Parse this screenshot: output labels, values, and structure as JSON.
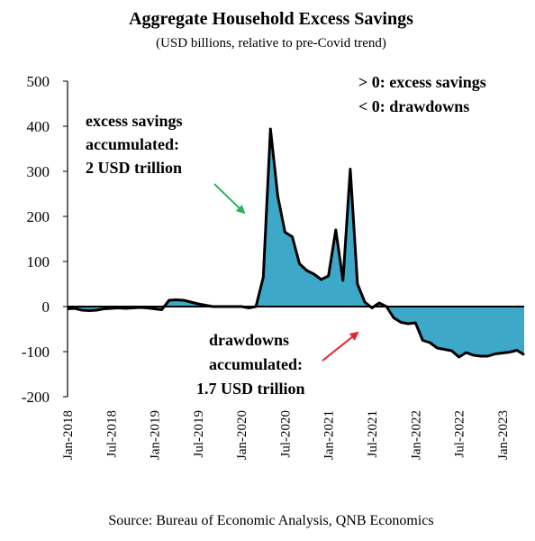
{
  "chart_data": {
    "type": "area",
    "title": "Aggregate Household Excess Savings",
    "subtitle": "(USD billions, relative to pre-Covid trend)",
    "source": "Source: Bureau of Economic Analysis, QNB Economics",
    "ylim": [
      -200,
      500
    ],
    "yticks": [
      "500",
      "400",
      "300",
      "200",
      "100",
      "0",
      "-100",
      "-200"
    ],
    "xticks": [
      "Jan-2018",
      "Jul-2018",
      "Jan-2019",
      "Jul-2019",
      "Jan-2020",
      "Jul-2020",
      "Jan-2021",
      "Jul-2021",
      "Jan-2022",
      "Jul-2022",
      "Jan-2023"
    ],
    "legend_note": [
      "> 0: excess savings",
      "< 0: drawdowns"
    ],
    "annotation_positive": [
      "excess savings",
      "accumulated:",
      "2 USD trillion"
    ],
    "annotation_negative": [
      "drawdowns",
      "accumulated:",
      "1.7 USD trillion"
    ],
    "colors": {
      "fill": "#3ea8c8",
      "line": "#000000",
      "arrow_positive": "#2db35a",
      "arrow_negative": "#e8242a"
    },
    "x": [
      "2018-01",
      "2018-02",
      "2018-03",
      "2018-04",
      "2018-05",
      "2018-06",
      "2018-07",
      "2018-08",
      "2018-09",
      "2018-10",
      "2018-11",
      "2018-12",
      "2019-01",
      "2019-02",
      "2019-03",
      "2019-04",
      "2019-05",
      "2019-06",
      "2019-07",
      "2019-08",
      "2019-09",
      "2019-10",
      "2019-11",
      "2019-12",
      "2020-01",
      "2020-02",
      "2020-03",
      "2020-04",
      "2020-05",
      "2020-06",
      "2020-07",
      "2020-08",
      "2020-09",
      "2020-10",
      "2020-11",
      "2020-12",
      "2021-01",
      "2021-02",
      "2021-03",
      "2021-04",
      "2021-05",
      "2021-06",
      "2021-07",
      "2021-08",
      "2021-09",
      "2021-10",
      "2021-11",
      "2021-12",
      "2022-01",
      "2022-02",
      "2022-03",
      "2022-04",
      "2022-05",
      "2022-06",
      "2022-07",
      "2022-08",
      "2022-09",
      "2022-10",
      "2022-11",
      "2022-12",
      "2023-01",
      "2023-02",
      "2023-03",
      "2023-04"
    ],
    "values": [
      -5,
      -4,
      -8,
      -9,
      -8,
      -5,
      -4,
      -3,
      -4,
      -3,
      -2,
      -3,
      -5,
      -7,
      14,
      15,
      14,
      10,
      6,
      3,
      0,
      0,
      0,
      0,
      0,
      -3,
      0,
      65,
      394,
      245,
      165,
      155,
      95,
      80,
      72,
      60,
      68,
      170,
      58,
      305,
      50,
      10,
      -3,
      8,
      0,
      -25,
      -35,
      -38,
      -36,
      -75,
      -80,
      -92,
      -95,
      -98,
      -112,
      -102,
      -108,
      -110,
      -110,
      -105,
      -103,
      -101,
      -97,
      -107
    ]
  }
}
